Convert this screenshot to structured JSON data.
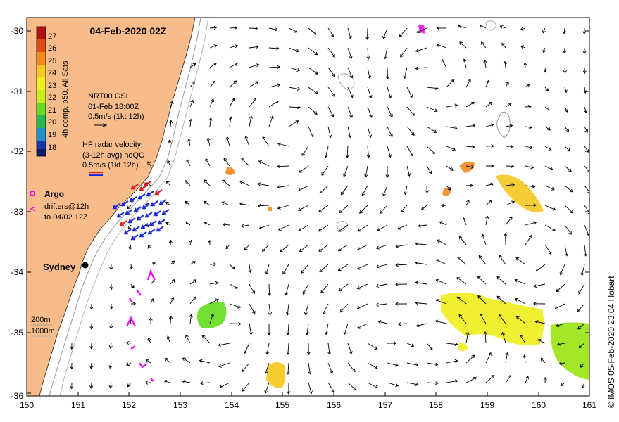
{
  "map": {
    "title": "04-Feb-2020 02Z",
    "colorbar": {
      "label": "4h comp, p50, All Sats",
      "ticks": [
        "27",
        "26",
        "25",
        "24",
        "23",
        "22",
        "21",
        "20",
        "19",
        "18"
      ],
      "colors": [
        "#b01010",
        "#e04818",
        "#f08a20",
        "#f6c820",
        "#f0ee20",
        "#c8ee20",
        "#66dd22",
        "#28b850",
        "#2090c8",
        "#1838b0",
        "#101a6a"
      ]
    },
    "legend": {
      "gsl_title": "NRT00 GSL",
      "gsl_date": "01-Feb 18:00Z",
      "gsl_scale": "0.5m/s (1kt 12h)",
      "hf_title": "HF radar velocity",
      "hf_avg": "(3-12h avg) noQC",
      "hf_scale": "0.5m/s (1kt 12h)",
      "argo_label": "Argo",
      "drifters_label": "drifters@12h",
      "drifters_date": "to 04/02 12Z"
    },
    "city_label": "Sydney",
    "isobaths": [
      "200m",
      "1000m"
    ],
    "x_ticks": [
      "150",
      "151",
      "152",
      "153",
      "154",
      "155",
      "156",
      "157",
      "158",
      "159",
      "160",
      "161"
    ],
    "y_ticks": [
      "-30",
      "-31",
      "-32",
      "-33",
      "-34",
      "-35",
      "-36"
    ],
    "credit": "© IMOS 05-Feb-2020 23:04 Hobart",
    "colors": {
      "land": "#f8bb8a",
      "radar_blue": "#1a2adc",
      "radar_red": "#e01818",
      "drifter_magenta": "#ee11ee"
    }
  }
}
